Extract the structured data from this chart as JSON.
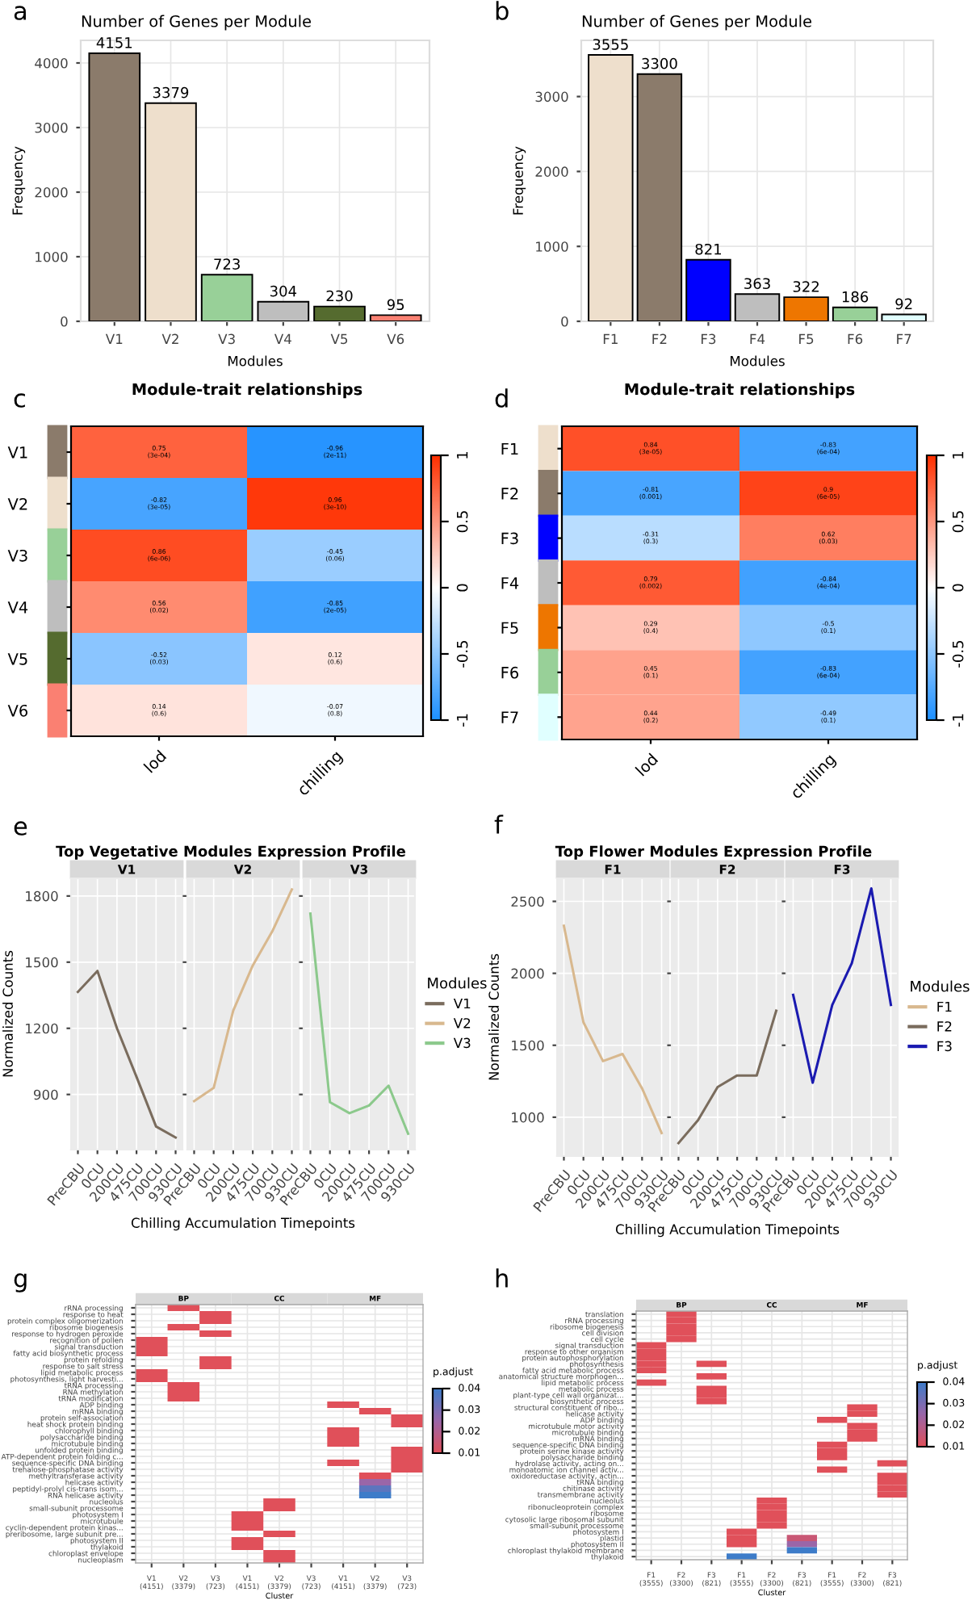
{
  "chart_data": [
    {
      "type": "bar",
      "title": "Number of Genes per Module",
      "annotations": [
        "a"
      ],
      "categories": [
        "V1",
        "V2",
        "V3",
        "V4",
        "V5",
        "V6"
      ],
      "values": [
        4151,
        3379,
        723,
        304,
        230,
        95
      ],
      "colors": [
        "#8b7b6b",
        "#eedfcc",
        "#98d098",
        "#bebebe",
        "#556b2f",
        "#fa8072"
      ],
      "xlabel": "Modules",
      "ylabel": "Frequency",
      "ylim": [
        0,
        4350
      ],
      "yticks": [
        0,
        1000,
        2000,
        3000,
        4000
      ],
      "grid": true,
      "data_labels": true
    },
    {
      "type": "bar",
      "title": "Number of Genes per Module",
      "annotations": [
        "b"
      ],
      "categories": [
        "F1",
        "F2",
        "F3",
        "F4",
        "F5",
        "F6",
        "F7"
      ],
      "values": [
        3555,
        3300,
        821,
        363,
        322,
        186,
        92
      ],
      "colors": [
        "#eedfcc",
        "#8b7b6b",
        "#0000ff",
        "#bebebe",
        "#ee7600",
        "#98d098",
        "#e0ffff"
      ],
      "xlabel": "Modules",
      "ylabel": "Frequency",
      "ylim": [
        0,
        3750
      ],
      "yticks": [
        0,
        1000,
        2000,
        3000
      ],
      "grid": true,
      "data_labels": true
    },
    {
      "type": "heatmap",
      "title": "Module-trait relationships",
      "annotations": [
        "c"
      ],
      "categories": [
        "lod",
        "chilling"
      ],
      "y_categories": [
        "V1",
        "V2",
        "V3",
        "V4",
        "V5",
        "V6"
      ],
      "colors": [
        "#8b7b6b",
        "#eedfcc",
        "#98d098",
        "#bebebe",
        "#556b2f",
        "#fa8072"
      ],
      "cells": [
        [
          0.75,
          -0.96
        ],
        [
          -0.82,
          0.96
        ],
        [
          0.86,
          -0.45
        ],
        [
          0.56,
          -0.85
        ],
        [
          -0.52,
          0.12
        ],
        [
          0.14,
          -0.07
        ]
      ],
      "cell_labels": [
        [
          "0.75\n(3e-04)",
          "-0.96\n(2e-11)"
        ],
        [
          "-0.82\n(3e-05)",
          "0.96\n(3e-10)"
        ],
        [
          "0.86\n(6e-06)",
          "-0.45\n(0.06)"
        ],
        [
          "0.56\n(0.02)",
          "-0.85\n(2e-05)"
        ],
        [
          "-0.52\n(0.03)",
          "0.12\n(0.6)"
        ],
        [
          "0.14\n(0.6)",
          "-0.07\n(0.8)"
        ]
      ],
      "clim": [
        -1,
        1
      ],
      "cticks": [
        -1,
        -0.5,
        0,
        0.5,
        1
      ]
    },
    {
      "type": "heatmap",
      "title": "Module-trait relationships",
      "annotations": [
        "d"
      ],
      "categories": [
        "lod",
        "chilling"
      ],
      "y_categories": [
        "F1",
        "F2",
        "F3",
        "F4",
        "F5",
        "F6",
        "F7"
      ],
      "colors": [
        "#eedfcc",
        "#8b7b6b",
        "#0000ff",
        "#bebebe",
        "#ee7600",
        "#98d098",
        "#e0ffff"
      ],
      "cells": [
        [
          0.84,
          -0.83
        ],
        [
          -0.81,
          0.9
        ],
        [
          -0.31,
          0.62
        ],
        [
          0.79,
          -0.84
        ],
        [
          0.29,
          -0.5
        ],
        [
          0.45,
          -0.83
        ],
        [
          0.44,
          -0.49
        ]
      ],
      "cell_labels": [
        [
          "0.84\n(3e-05)",
          "-0.83\n(6e-04)"
        ],
        [
          "-0.81\n(0.001)",
          "0.9\n(6e-05)"
        ],
        [
          "-0.31\n(0.3)",
          "0.62\n(0.03)"
        ],
        [
          "0.79\n(0.002)",
          "-0.84\n(4e-04)"
        ],
        [
          "0.29\n(0.4)",
          "-0.5\n(0.1)"
        ],
        [
          "0.45\n(0.1)",
          "-0.83\n(6e-04)"
        ],
        [
          "0.44\n(0.2)",
          "-0.49\n(0.1)"
        ]
      ],
      "clim": [
        -1,
        1
      ],
      "cticks": [
        -1,
        -0.5,
        0,
        0.5,
        1
      ]
    },
    {
      "type": "line",
      "title": "V1",
      "annotations": [
        "e",
        "Top Vegetative Modules Expression Profile"
      ],
      "categories": [
        "PreCBU",
        "0CU",
        "200CU",
        "475CU",
        "700CU",
        "930CU"
      ],
      "series": [
        {
          "name": "V1",
          "color": "#7a6c5d",
          "values": [
            1365,
            1460,
            1200,
            980,
            755,
            705
          ]
        }
      ],
      "ylabel": "Normalized Counts",
      "ylim": [
        650,
        1880
      ],
      "yticks": [
        900,
        1200,
        1500,
        1800
      ],
      "grid": true
    },
    {
      "type": "line",
      "title": "V2",
      "categories": [
        "PreCBU",
        "0CU",
        "200CU",
        "475CU",
        "700CU",
        "930CU"
      ],
      "series": [
        {
          "name": "V2",
          "color": "#d8b88e",
          "values": [
            870,
            930,
            1280,
            1485,
            1640,
            1830
          ]
        }
      ],
      "xlabel": "Chilling Accumulation Timepoints",
      "ylim": [
        650,
        1880
      ],
      "yticks": [
        900,
        1200,
        1500,
        1800
      ],
      "grid": true,
      "tick_labels": "x"
    },
    {
      "type": "line",
      "title": "V3",
      "categories": [
        "PreCBU",
        "0CU",
        "200CU",
        "475CU",
        "700CU",
        "930CU"
      ],
      "series": [
        {
          "name": "V3",
          "color": "#8cc98c",
          "values": [
            1720,
            865,
            815,
            850,
            940,
            722
          ]
        }
      ],
      "ylim": [
        650,
        1880
      ],
      "yticks": [
        900,
        1200,
        1500,
        1800
      ],
      "grid": true,
      "tick_labels": "x",
      "legend": "right",
      "legend_title": "Modules"
    },
    {
      "type": "line",
      "title": "F1",
      "annotations": [
        "f",
        "Top Flower Modules Expression Profile"
      ],
      "categories": [
        "PreCBU",
        "0CU",
        "200CU",
        "475CU",
        "700CU",
        "930CU"
      ],
      "series": [
        {
          "name": "F1",
          "color": "#d8b88e",
          "values": [
            2330,
            1660,
            1390,
            1440,
            1200,
            890
          ]
        }
      ],
      "ylabel": "Normalized Counts",
      "ylim": [
        730,
        2660
      ],
      "yticks": [
        1000,
        1500,
        2000,
        2500
      ],
      "grid": true
    },
    {
      "type": "line",
      "title": "F2",
      "categories": [
        "PreCBU",
        "0CU",
        "200CU",
        "475CU",
        "700CU",
        "930CU"
      ],
      "series": [
        {
          "name": "F2",
          "color": "#7a6c5d",
          "values": [
            820,
            980,
            1210,
            1290,
            1290,
            1740
          ]
        }
      ],
      "xlabel": "Chilling Accumulation Timepoints",
      "ylim": [
        730,
        2660
      ],
      "yticks": [
        1000,
        1500,
        2000,
        2500
      ],
      "grid": true,
      "tick_labels": "x"
    },
    {
      "type": "line",
      "title": "F3",
      "categories": [
        "PreCBU",
        "0CU",
        "200CU",
        "475CU",
        "700CU",
        "930CU"
      ],
      "series": [
        {
          "name": "F3",
          "color": "#1a1ab0",
          "values": [
            1850,
            1240,
            1780,
            2070,
            2590,
            1780
          ]
        }
      ],
      "ylim": [
        730,
        2660
      ],
      "yticks": [
        1000,
        1500,
        2000,
        2500
      ],
      "grid": true,
      "tick_labels": "x",
      "legend": "right",
      "legend_title": "Modules"
    },
    {
      "type": "heatmap",
      "annotations": [
        "g",
        "BP",
        "CC",
        "MF"
      ],
      "grid": true,
      "xlabel": "Cluster",
      "categories": [
        "V1\n(4151)",
        "V2\n(3379)",
        "V3\n(723)",
        "V1\n(4151)",
        "V2\n(3379)",
        "V3\n(723)",
        "V1\n(4151)",
        "V2\n(3379)",
        "V3\n(723)"
      ],
      "y_categories": [
        "rRNA processing",
        "response to heat",
        "protein complex oligomerization",
        "ribosome biogenesis",
        "response to hydrogen peroxide",
        "recognition of pollen",
        "signal transduction",
        "fatty acid biosynthetic process",
        "protein refolding",
        "response to salt stress",
        "lipid metabolic process",
        "photosynthesis, light harvesti...",
        "tRNA processing",
        "RNA methylation",
        "tRNA modification",
        "ADP binding",
        "mRNA binding",
        "protein self-association",
        "heat shock protein binding",
        "chlorophyll binding",
        "polysaccharide binding",
        "microtubule binding",
        "unfolded protein binding",
        "ATP-dependent protein folding c...",
        "sequence-specific DNA binding",
        "trehalose-phosphatase activity",
        "methyltransferase activity",
        "helicase activity",
        "peptidyl-prolyl cis-trans isom...",
        "RNA helicase activity",
        "nucleolus",
        "small-subunit processome",
        "photosystem I",
        "microtubule",
        "cyclin-dependent protein kinas...",
        "preribosome, large subunit pre...",
        "photosystem II",
        "thylakoid",
        "chloroplast envelope",
        "nucleoplasm"
      ],
      "cells": [
        [
          null,
          0.01,
          null,
          null,
          null,
          null,
          null,
          null,
          null
        ],
        [
          null,
          null,
          0.01,
          null,
          null,
          null,
          null,
          null,
          null
        ],
        [
          null,
          null,
          0.01,
          null,
          null,
          null,
          null,
          null,
          null
        ],
        [
          null,
          0.01,
          null,
          null,
          null,
          null,
          null,
          null,
          null
        ],
        [
          null,
          null,
          0.01,
          null,
          null,
          null,
          null,
          null,
          null
        ],
        [
          0.01,
          null,
          null,
          null,
          null,
          null,
          null,
          null,
          null
        ],
        [
          0.01,
          null,
          null,
          null,
          null,
          null,
          null,
          null,
          null
        ],
        [
          0.01,
          null,
          null,
          null,
          null,
          null,
          null,
          null,
          null
        ],
        [
          null,
          null,
          0.01,
          null,
          null,
          null,
          null,
          null,
          null
        ],
        [
          null,
          null,
          0.01,
          null,
          null,
          null,
          null,
          null,
          null
        ],
        [
          0.01,
          null,
          null,
          null,
          null,
          null,
          null,
          null,
          null
        ],
        [
          0.01,
          null,
          null,
          null,
          null,
          null,
          null,
          null,
          null
        ],
        [
          null,
          0.01,
          null,
          null,
          null,
          null,
          null,
          null,
          null
        ],
        [
          null,
          0.01,
          null,
          null,
          null,
          null,
          null,
          null,
          null
        ],
        [
          null,
          0.01,
          null,
          null,
          null,
          null,
          null,
          null,
          null
        ],
        [
          null,
          null,
          null,
          null,
          null,
          null,
          0.01,
          null,
          null
        ],
        [
          null,
          null,
          null,
          null,
          null,
          null,
          null,
          0.01,
          null
        ],
        [
          null,
          null,
          null,
          null,
          null,
          null,
          null,
          null,
          0.01
        ],
        [
          null,
          null,
          null,
          null,
          null,
          null,
          null,
          null,
          0.01
        ],
        [
          null,
          null,
          null,
          null,
          null,
          null,
          0.01,
          null,
          null
        ],
        [
          null,
          null,
          null,
          null,
          null,
          null,
          0.01,
          null,
          null
        ],
        [
          null,
          null,
          null,
          null,
          null,
          null,
          0.01,
          null,
          null
        ],
        [
          null,
          null,
          null,
          null,
          null,
          null,
          null,
          null,
          0.01
        ],
        [
          null,
          null,
          null,
          null,
          null,
          null,
          null,
          null,
          0.01
        ],
        [
          null,
          null,
          null,
          null,
          null,
          null,
          0.01,
          null,
          0.01
        ],
        [
          null,
          null,
          null,
          null,
          null,
          null,
          null,
          null,
          0.01
        ],
        [
          null,
          null,
          null,
          null,
          null,
          null,
          null,
          0.01,
          null
        ],
        [
          null,
          null,
          null,
          null,
          null,
          null,
          null,
          0.025,
          null
        ],
        [
          null,
          null,
          null,
          null,
          null,
          null,
          null,
          0.035,
          null
        ],
        [
          null,
          null,
          null,
          null,
          null,
          null,
          null,
          0.04,
          null
        ],
        [
          null,
          null,
          null,
          null,
          0.01,
          null,
          null,
          null,
          null
        ],
        [
          null,
          null,
          null,
          null,
          0.01,
          null,
          null,
          null,
          null
        ],
        [
          null,
          null,
          null,
          0.01,
          null,
          null,
          null,
          null,
          null
        ],
        [
          null,
          null,
          null,
          0.01,
          null,
          null,
          null,
          null,
          null
        ],
        [
          null,
          null,
          null,
          0.01,
          null,
          null,
          null,
          null,
          null
        ],
        [
          null,
          null,
          null,
          null,
          0.01,
          null,
          null,
          null,
          null
        ],
        [
          null,
          null,
          null,
          0.01,
          null,
          null,
          null,
          null,
          null
        ],
        [
          null,
          null,
          null,
          0.01,
          null,
          null,
          null,
          null,
          null
        ],
        [
          null,
          null,
          null,
          null,
          0.01,
          null,
          null,
          null,
          null
        ],
        [
          null,
          null,
          null,
          null,
          0.01,
          null,
          null,
          null,
          null
        ]
      ],
      "clabel": "p.adjust",
      "clim": [
        0.01,
        0.04
      ],
      "cticks": [
        0.01,
        0.02,
        0.03,
        0.04
      ]
    },
    {
      "type": "heatmap",
      "annotations": [
        "h",
        "BP",
        "CC",
        "MF"
      ],
      "grid": true,
      "xlabel": "Cluster",
      "categories": [
        "F1\n(3555)",
        "F2\n(3300)",
        "F3\n(821)",
        "F1\n(3555)",
        "F2\n(3300)",
        "F3\n(821)",
        "F1\n(3555)",
        "F2\n(3300)",
        "F3\n(821)"
      ],
      "y_categories": [
        "translation",
        "rRNA processing",
        "ribosome biogenesis",
        "cell division",
        "cell cycle",
        "signal transduction",
        "response to other organism",
        "protein autophosphorylation",
        "photosynthesis",
        "fatty acid metabolic process",
        "anatomical structure morphogen...",
        "lipid metabolic process",
        "metabolic process",
        "plant-type cell wall organizat...",
        "biosynthetic process",
        "structural constituent of ribo...",
        "helicase activity",
        "ADP binding",
        "microtubule motor activity",
        "microtubule binding",
        "mRNA binding",
        "sequence-specific DNA binding",
        "protein serine kinase activity",
        "polysaccharide binding",
        "hydrolase activity, acting on...",
        "monoatomic ion channel activ...",
        "oxidoreductase activity, actin...",
        "tRNA binding",
        "chitinase activity",
        "transmembrane activity",
        "nucleolus",
        "ribonucleoprotein complex",
        "ribosome",
        "cytosolic large ribosomal subunit",
        "small-subunit processome",
        "photosystem I",
        "plastid",
        "photosystem II",
        "chloroplast thylakoid membrane",
        "thylakoid"
      ],
      "cells": [
        [
          null,
          0.01,
          null,
          null,
          null,
          null,
          null,
          null,
          null
        ],
        [
          null,
          0.01,
          null,
          null,
          null,
          null,
          null,
          null,
          null
        ],
        [
          null,
          0.01,
          null,
          null,
          null,
          null,
          null,
          null,
          null
        ],
        [
          null,
          0.01,
          null,
          null,
          null,
          null,
          null,
          null,
          null
        ],
        [
          null,
          0.01,
          null,
          null,
          null,
          null,
          null,
          null,
          null
        ],
        [
          0.01,
          null,
          null,
          null,
          null,
          null,
          null,
          null,
          null
        ],
        [
          0.01,
          null,
          null,
          null,
          null,
          null,
          null,
          null,
          null
        ],
        [
          0.01,
          null,
          null,
          null,
          null,
          null,
          null,
          null,
          null
        ],
        [
          0.01,
          null,
          0.01,
          null,
          null,
          null,
          null,
          null,
          null
        ],
        [
          0.01,
          null,
          null,
          null,
          null,
          null,
          null,
          null,
          null
        ],
        [
          null,
          null,
          0.01,
          null,
          null,
          null,
          null,
          null,
          null
        ],
        [
          0.01,
          null,
          null,
          null,
          null,
          null,
          null,
          null,
          null
        ],
        [
          null,
          null,
          0.01,
          null,
          null,
          null,
          null,
          null,
          null
        ],
        [
          null,
          null,
          0.01,
          null,
          null,
          null,
          null,
          null,
          null
        ],
        [
          null,
          null,
          0.01,
          null,
          null,
          null,
          null,
          null,
          null
        ],
        [
          null,
          null,
          null,
          null,
          null,
          null,
          null,
          0.01,
          null
        ],
        [
          null,
          null,
          null,
          null,
          null,
          null,
          null,
          0.01,
          null
        ],
        [
          null,
          null,
          null,
          null,
          null,
          null,
          0.01,
          null,
          null
        ],
        [
          null,
          null,
          null,
          null,
          null,
          null,
          null,
          0.01,
          null
        ],
        [
          null,
          null,
          null,
          null,
          null,
          null,
          null,
          0.01,
          null
        ],
        [
          null,
          null,
          null,
          null,
          null,
          null,
          null,
          0.01,
          null
        ],
        [
          null,
          null,
          null,
          null,
          null,
          null,
          0.01,
          null,
          null
        ],
        [
          null,
          null,
          null,
          null,
          null,
          null,
          0.01,
          null,
          null
        ],
        [
          null,
          null,
          null,
          null,
          null,
          null,
          0.01,
          null,
          null
        ],
        [
          null,
          null,
          null,
          null,
          null,
          null,
          null,
          null,
          0.01
        ],
        [
          null,
          null,
          null,
          null,
          null,
          null,
          0.01,
          null,
          null
        ],
        [
          null,
          null,
          null,
          null,
          null,
          null,
          null,
          null,
          0.01
        ],
        [
          null,
          null,
          null,
          null,
          null,
          null,
          null,
          null,
          0.01
        ],
        [
          null,
          null,
          null,
          null,
          null,
          null,
          null,
          null,
          0.01
        ],
        [
          null,
          null,
          null,
          null,
          null,
          null,
          null,
          null,
          0.01
        ],
        [
          null,
          null,
          null,
          null,
          0.01,
          null,
          null,
          null,
          null
        ],
        [
          null,
          null,
          null,
          null,
          0.01,
          null,
          null,
          null,
          null
        ],
        [
          null,
          null,
          null,
          null,
          0.01,
          null,
          null,
          null,
          null
        ],
        [
          null,
          null,
          null,
          null,
          0.01,
          null,
          null,
          null,
          null
        ],
        [
          null,
          null,
          null,
          null,
          0.01,
          null,
          null,
          null,
          null
        ],
        [
          null,
          null,
          null,
          0.01,
          null,
          null,
          null,
          null,
          null
        ],
        [
          null,
          null,
          null,
          0.01,
          null,
          0.015,
          null,
          null,
          null
        ],
        [
          null,
          null,
          null,
          0.01,
          null,
          0.025,
          null,
          null,
          null
        ],
        [
          null,
          null,
          null,
          null,
          null,
          0.04,
          null,
          null,
          null
        ],
        [
          null,
          null,
          null,
          0.04,
          null,
          null,
          null,
          null,
          null
        ]
      ],
      "clabel": "p.adjust",
      "clim": [
        0.01,
        0.04
      ],
      "cticks": [
        0.01,
        0.02,
        0.03,
        0.04
      ]
    }
  ]
}
